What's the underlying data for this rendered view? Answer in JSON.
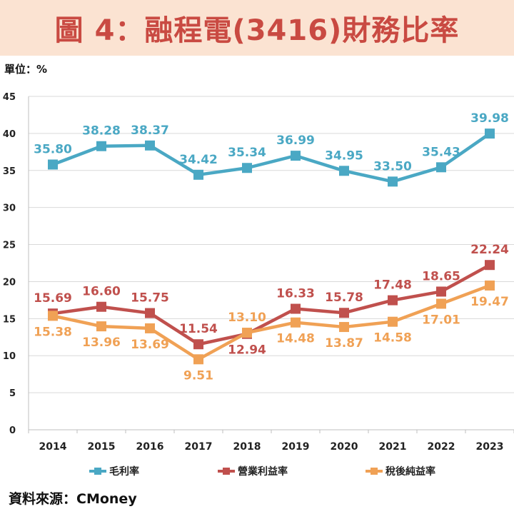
{
  "title": "圖 4：融程電(3416)財務比率",
  "unit_label": "單位：%",
  "source_label": "資料來源：CMoney",
  "colors": {
    "title_bg": "#fbe3d2",
    "title_text": "#c94a42",
    "gross": "#4aa8c4",
    "operating": "#c0504d",
    "net": "#f0a155"
  },
  "chart_data": {
    "type": "line",
    "categories": [
      "2014",
      "2015",
      "2016",
      "2017",
      "2018",
      "2019",
      "2020",
      "2021",
      "2022",
      "2023"
    ],
    "ylim": [
      0,
      45
    ],
    "yticks": [
      0,
      5,
      10,
      15,
      20,
      25,
      30,
      35,
      40,
      45
    ],
    "grid": true,
    "legend_position": "bottom",
    "series": [
      {
        "name": "毛利率",
        "color": "#4aa8c4",
        "labels_above": true,
        "values": [
          35.8,
          38.28,
          38.37,
          34.42,
          35.34,
          36.99,
          34.95,
          33.5,
          35.43,
          39.98
        ],
        "labels": [
          "35.80",
          "38.28",
          "38.37",
          "34.42",
          "35.34",
          "36.99",
          "34.95",
          "33.50",
          "35.43",
          "39.98"
        ]
      },
      {
        "name": "營業利益率",
        "color": "#c0504d",
        "values": [
          15.69,
          16.6,
          15.75,
          11.54,
          12.94,
          16.33,
          15.78,
          17.48,
          18.65,
          22.24
        ],
        "labels": [
          "15.69",
          "16.60",
          "15.75",
          "11.54",
          "12.94",
          "16.33",
          "15.78",
          "17.48",
          "18.65",
          "22.24"
        ],
        "label_pos": [
          "above",
          "above",
          "above",
          "above",
          "below",
          "above",
          "above",
          "above",
          "above",
          "above"
        ]
      },
      {
        "name": "稅後純益率",
        "color": "#f0a155",
        "values": [
          15.38,
          13.96,
          13.69,
          9.51,
          13.1,
          14.48,
          13.87,
          14.58,
          17.01,
          19.47
        ],
        "labels": [
          "15.38",
          "13.96",
          "13.69",
          "9.51",
          "13.10",
          "14.48",
          "13.87",
          "14.58",
          "17.01",
          "19.47"
        ],
        "label_pos": [
          "below",
          "below",
          "below",
          "below",
          "above",
          "below",
          "below",
          "below",
          "below",
          "below"
        ]
      }
    ]
  }
}
